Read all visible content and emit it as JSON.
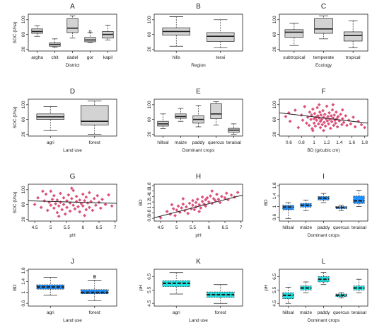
{
  "figure": {
    "colors": {
      "box_gray": "#d3d3d3",
      "box_blue": "#1e90ff",
      "box_cyan": "#22e0e0",
      "point_red": "#e0507a",
      "line": "#222222"
    }
  },
  "chart_data": [
    {
      "panel": "A",
      "type": "boxplot",
      "xlabel": "District",
      "ylabel": "SOC (t/ha)",
      "ylim": [
        15,
        115
      ],
      "yticks": [
        20,
        60,
        100
      ],
      "categories": [
        "argha",
        "chit",
        "dadel",
        "gor",
        "kapil"
      ],
      "box_color": "#d3d3d3",
      "boxes": [
        {
          "min": 55,
          "q1": 63,
          "median": 68,
          "q3": 75,
          "max": 83
        },
        {
          "min": 25,
          "q1": 28,
          "median": 33,
          "q3": 37,
          "max": 48
        },
        {
          "min": 50,
          "q1": 65,
          "median": 77,
          "q3": 103,
          "max": 110
        },
        {
          "min": 38,
          "q1": 40,
          "median": 45,
          "q3": 52,
          "max": 65
        },
        {
          "min": 45,
          "q1": 50,
          "median": 60,
          "q3": 68,
          "max": 85
        }
      ],
      "outliers": [
        {
          "cat": 3,
          "y": 68
        }
      ]
    },
    {
      "panel": "B",
      "type": "boxplot",
      "xlabel": "Region",
      "ylabel": "",
      "ylim": [
        15,
        115
      ],
      "yticks": [
        20,
        60,
        100
      ],
      "categories": [
        "hills",
        "terai"
      ],
      "box_color": "#d3d3d3",
      "boxes": [
        {
          "min": 28,
          "q1": 58,
          "median": 68,
          "q3": 78,
          "max": 108
        },
        {
          "min": 24,
          "q1": 41,
          "median": 55,
          "q3": 65,
          "max": 100
        }
      ],
      "outliers": []
    },
    {
      "panel": "C",
      "type": "boxplot",
      "xlabel": "Ecology",
      "ylabel": "",
      "ylim": [
        15,
        115
      ],
      "yticks": [
        20,
        60,
        100
      ],
      "categories": [
        "subtropical",
        "temperate",
        "tropical"
      ],
      "box_color": "#d3d3d3",
      "boxes": [
        {
          "min": 30,
          "q1": 52,
          "median": 66,
          "q3": 73,
          "max": 90
        },
        {
          "min": 48,
          "q1": 63,
          "median": 75,
          "q3": 103,
          "max": 110
        },
        {
          "min": 24,
          "q1": 42,
          "median": 57,
          "q3": 67,
          "max": 97
        }
      ],
      "outliers": []
    },
    {
      "panel": "D",
      "type": "boxplot",
      "xlabel": "Land use",
      "ylabel": "SOC (t/ha)",
      "ylim": [
        15,
        115
      ],
      "yticks": [
        20,
        60,
        100
      ],
      "categories": [
        "agri",
        "forest"
      ],
      "box_color": "#d3d3d3",
      "boxes": [
        {
          "min": 30,
          "q1": 60,
          "median": 67,
          "q3": 75,
          "max": 95
        },
        {
          "min": 20,
          "q1": 45,
          "median": 55,
          "q3": 98,
          "max": 110
        }
      ],
      "outliers": []
    },
    {
      "panel": "E",
      "type": "boxplot",
      "xlabel": "Dominant crops",
      "ylabel": "",
      "ylim": [
        15,
        115
      ],
      "yticks": [
        20,
        60,
        100
      ],
      "categories": [
        "hillsal",
        "maize",
        "paddy",
        "quercus",
        "teraisal"
      ],
      "box_color": "#d3d3d3",
      "boxes": [
        {
          "min": 35,
          "q1": 42,
          "median": 48,
          "q3": 55,
          "max": 75
        },
        {
          "min": 55,
          "q1": 63,
          "median": 68,
          "q3": 75,
          "max": 90
        },
        {
          "min": 40,
          "q1": 50,
          "median": 60,
          "q3": 70,
          "max": 98
        },
        {
          "min": 45,
          "q1": 62,
          "median": 75,
          "q3": 103,
          "max": 108
        },
        {
          "min": 20,
          "q1": 25,
          "median": 31,
          "q3": 36,
          "max": 48
        }
      ],
      "outliers": []
    },
    {
      "panel": "F",
      "type": "scatter",
      "xlabel": "BD (g/cubic cm)",
      "ylabel": "",
      "xlim": [
        0.45,
        1.85
      ],
      "ylim": [
        15,
        115
      ],
      "xticks": [
        0.6,
        0.8,
        1.0,
        1.2,
        1.4,
        1.6,
        1.8
      ],
      "yticks": [
        20,
        60,
        100
      ],
      "trend": {
        "x1": 0.45,
        "y1": 78,
        "x2": 1.85,
        "y2": 50
      },
      "points": [
        [
          0.55,
          68
        ],
        [
          0.62,
          55
        ],
        [
          0.7,
          85
        ],
        [
          0.75,
          38
        ],
        [
          0.8,
          72
        ],
        [
          0.82,
          58
        ],
        [
          0.85,
          95
        ],
        [
          0.88,
          50
        ],
        [
          0.9,
          66
        ],
        [
          0.92,
          44
        ],
        [
          0.93,
          80
        ],
        [
          0.95,
          60
        ],
        [
          0.96,
          72
        ],
        [
          0.97,
          35
        ],
        [
          0.98,
          88
        ],
        [
          1.0,
          62
        ],
        [
          1.0,
          50
        ],
        [
          1.01,
          76
        ],
        [
          1.02,
          42
        ],
        [
          1.03,
          66
        ],
        [
          1.04,
          58
        ],
        [
          1.05,
          92
        ],
        [
          1.06,
          70
        ],
        [
          1.07,
          48
        ],
        [
          1.08,
          64
        ],
        [
          1.09,
          80
        ],
        [
          1.1,
          55
        ],
        [
          1.1,
          38
        ],
        [
          1.11,
          72
        ],
        [
          1.12,
          60
        ],
        [
          1.13,
          46
        ],
        [
          1.14,
          84
        ],
        [
          1.15,
          66
        ],
        [
          1.16,
          52
        ],
        [
          1.17,
          74
        ],
        [
          1.18,
          42
        ],
        [
          1.19,
          62
        ],
        [
          1.2,
          96
        ],
        [
          1.21,
          56
        ],
        [
          1.22,
          68
        ],
        [
          1.23,
          48
        ],
        [
          1.24,
          78
        ],
        [
          1.25,
          60
        ],
        [
          1.26,
          36
        ],
        [
          1.27,
          70
        ],
        [
          1.28,
          54
        ],
        [
          1.29,
          86
        ],
        [
          1.3,
          64
        ],
        [
          1.31,
          44
        ],
        [
          1.32,
          72
        ],
        [
          1.33,
          58
        ],
        [
          1.34,
          50
        ],
        [
          1.35,
          80
        ],
        [
          1.36,
          62
        ],
        [
          1.37,
          40
        ],
        [
          1.38,
          68
        ],
        [
          1.4,
          56
        ],
        [
          1.42,
          74
        ],
        [
          1.44,
          46
        ],
        [
          1.45,
          62
        ],
        [
          1.47,
          52
        ],
        [
          1.5,
          70
        ],
        [
          1.52,
          44
        ],
        [
          1.55,
          58
        ],
        [
          1.58,
          48
        ],
        [
          1.62,
          66
        ],
        [
          1.65,
          40
        ],
        [
          1.7,
          55
        ],
        [
          1.75,
          46
        ],
        [
          1.8,
          38
        ],
        [
          1.08,
          100
        ],
        [
          1.15,
          30
        ],
        [
          0.98,
          30
        ],
        [
          1.3,
          100
        ],
        [
          1.45,
          86
        ],
        [
          0.6,
          78
        ]
      ]
    },
    {
      "panel": "G",
      "type": "scatter",
      "xlabel": "pH",
      "ylabel": "SOC (t/ha)",
      "xlim": [
        4.3,
        7.05
      ],
      "ylim": [
        15,
        115
      ],
      "xticks": [
        4.5,
        5.0,
        5.5,
        6.0,
        6.5,
        7.0
      ],
      "yticks": [
        20,
        60,
        100
      ],
      "trend": {
        "x1": 4.3,
        "y1": 70,
        "x2": 7.05,
        "y2": 63
      },
      "points": [
        [
          4.5,
          60
        ],
        [
          4.6,
          78
        ],
        [
          4.7,
          52
        ],
        [
          4.8,
          70
        ],
        [
          4.85,
          88
        ],
        [
          4.9,
          44
        ],
        [
          4.95,
          66
        ],
        [
          5.0,
          58
        ],
        [
          5.0,
          96
        ],
        [
          5.05,
          74
        ],
        [
          5.1,
          50
        ],
        [
          5.1,
          84
        ],
        [
          5.15,
          62
        ],
        [
          5.2,
          38
        ],
        [
          5.2,
          72
        ],
        [
          5.25,
          56
        ],
        [
          5.3,
          90
        ],
        [
          5.3,
          66
        ],
        [
          5.35,
          46
        ],
        [
          5.4,
          78
        ],
        [
          5.4,
          60
        ],
        [
          5.45,
          34
        ],
        [
          5.5,
          70
        ],
        [
          5.5,
          52
        ],
        [
          5.55,
          86
        ],
        [
          5.6,
          64
        ],
        [
          5.6,
          42
        ],
        [
          5.65,
          76
        ],
        [
          5.7,
          58
        ],
        [
          5.7,
          98
        ],
        [
          5.75,
          48
        ],
        [
          5.8,
          68
        ],
        [
          5.8,
          82
        ],
        [
          5.85,
          54
        ],
        [
          5.9,
          72
        ],
        [
          5.9,
          40
        ],
        [
          5.95,
          62
        ],
        [
          6.0,
          88
        ],
        [
          6.0,
          56
        ],
        [
          6.05,
          70
        ],
        [
          6.1,
          46
        ],
        [
          6.1,
          80
        ],
        [
          6.15,
          64
        ],
        [
          6.2,
          52
        ],
        [
          6.2,
          92
        ],
        [
          6.25,
          68
        ],
        [
          6.3,
          44
        ],
        [
          6.35,
          76
        ],
        [
          6.4,
          58
        ],
        [
          6.45,
          84
        ],
        [
          6.5,
          66
        ],
        [
          6.55,
          50
        ],
        [
          6.6,
          74
        ],
        [
          6.7,
          60
        ],
        [
          6.8,
          86
        ],
        [
          6.9,
          56
        ],
        [
          5.25,
          28
        ],
        [
          5.65,
          104
        ],
        [
          6.05,
          30
        ],
        [
          4.75,
          96
        ]
      ]
    },
    {
      "panel": "H",
      "type": "scatter",
      "xlabel": "pH",
      "ylabel": "BD",
      "xlim": [
        4.3,
        7.05
      ],
      "ylim": [
        0.5,
        1.85
      ],
      "xticks": [
        4.5,
        5.0,
        5.5,
        6.0,
        6.5,
        7.0
      ],
      "yticks": [
        0.6,
        0.8,
        1.0,
        1.2,
        1.4,
        1.6,
        1.8
      ],
      "trend": {
        "x1": 4.3,
        "y1": 0.62,
        "x2": 7.05,
        "y2": 1.45
      },
      "points": [
        [
          4.5,
          0.62
        ],
        [
          4.7,
          0.85
        ],
        [
          4.8,
          0.75
        ],
        [
          4.9,
          0.95
        ],
        [
          4.95,
          0.7
        ],
        [
          5.0,
          0.9
        ],
        [
          5.05,
          1.05
        ],
        [
          5.1,
          0.82
        ],
        [
          5.15,
          0.98
        ],
        [
          5.2,
          1.12
        ],
        [
          5.25,
          0.88
        ],
        [
          5.3,
          1.02
        ],
        [
          5.35,
          0.78
        ],
        [
          5.4,
          1.15
        ],
        [
          5.45,
          0.95
        ],
        [
          5.5,
          1.08
        ],
        [
          5.5,
          1.25
        ],
        [
          5.55,
          0.92
        ],
        [
          5.6,
          1.18
        ],
        [
          5.6,
          1.02
        ],
        [
          5.65,
          1.3
        ],
        [
          5.7,
          1.1
        ],
        [
          5.75,
          0.98
        ],
        [
          5.8,
          1.22
        ],
        [
          5.8,
          1.38
        ],
        [
          5.85,
          1.12
        ],
        [
          5.9,
          1.28
        ],
        [
          5.9,
          1.05
        ],
        [
          5.95,
          1.35
        ],
        [
          6.0,
          1.2
        ],
        [
          6.05,
          1.42
        ],
        [
          6.1,
          1.15
        ],
        [
          6.15,
          1.32
        ],
        [
          6.2,
          1.25
        ],
        [
          6.25,
          1.48
        ],
        [
          6.3,
          1.3
        ],
        [
          6.35,
          1.18
        ],
        [
          6.4,
          1.4
        ],
        [
          6.5,
          1.35
        ],
        [
          6.55,
          1.52
        ],
        [
          6.6,
          1.28
        ],
        [
          6.7,
          1.45
        ],
        [
          6.8,
          1.38
        ],
        [
          6.9,
          1.55
        ],
        [
          5.2,
          1.32
        ],
        [
          5.7,
          0.85
        ],
        [
          6.1,
          1.6
        ],
        [
          4.85,
          1.1
        ]
      ]
    },
    {
      "panel": "I",
      "type": "boxplot",
      "xlabel": "Dominant crops",
      "ylabel": "BD",
      "ylim": [
        0.45,
        1.85
      ],
      "yticks": [
        0.6,
        1.0,
        1.4,
        1.8
      ],
      "categories": [
        "hillsal",
        "maize",
        "paddy",
        "quercus",
        "teraisal"
      ],
      "box_color": "#1e90ff",
      "boxes": [
        {
          "min": 0.55,
          "q1": 0.88,
          "median": 0.98,
          "q3": 1.05,
          "max": 1.15
        },
        {
          "min": 0.85,
          "q1": 0.98,
          "median": 1.05,
          "q3": 1.12,
          "max": 1.25
        },
        {
          "min": 1.15,
          "q1": 1.25,
          "median": 1.32,
          "q3": 1.38,
          "max": 1.5
        },
        {
          "min": 0.85,
          "q1": 0.92,
          "median": 0.97,
          "q3": 1.0,
          "max": 1.05
        },
        {
          "min": 1.0,
          "q1": 1.12,
          "median": 1.22,
          "q3": 1.4,
          "max": 1.62
        }
      ],
      "outliers": []
    },
    {
      "panel": "J",
      "type": "boxplot",
      "xlabel": "Land use",
      "ylabel": "BD",
      "ylim": [
        0.5,
        1.85
      ],
      "yticks": [
        0.6,
        1.0,
        1.4,
        1.8
      ],
      "categories": [
        "agri",
        "forest"
      ],
      "box_color": "#1e90ff",
      "boxes": [
        {
          "min": 0.9,
          "q1": 1.12,
          "median": 1.2,
          "q3": 1.28,
          "max": 1.55
        },
        {
          "min": 0.7,
          "q1": 0.95,
          "median": 1.0,
          "q3": 1.1,
          "max": 1.45
        }
      ],
      "outliers": [
        {
          "cat": 1,
          "y": 1.6
        },
        {
          "cat": 1,
          "y": 1.55
        }
      ]
    },
    {
      "panel": "K",
      "type": "boxplot",
      "xlabel": "Land use",
      "ylabel": "pH",
      "ylim": [
        4.3,
        7.05
      ],
      "yticks": [
        4.5,
        5.5,
        6.5
      ],
      "categories": [
        "agri",
        "forest"
      ],
      "box_color": "#22e0e0",
      "boxes": [
        {
          "min": 5.2,
          "q1": 5.75,
          "median": 6.0,
          "q3": 6.2,
          "max": 6.8
        },
        {
          "min": 4.5,
          "q1": 4.95,
          "median": 5.15,
          "q3": 5.35,
          "max": 5.9
        }
      ],
      "outliers": []
    },
    {
      "panel": "L",
      "type": "boxplot",
      "xlabel": "Dominant crops",
      "ylabel": "pH",
      "ylim": [
        4.3,
        7.05
      ],
      "yticks": [
        4.5,
        5.5,
        6.5
      ],
      "categories": [
        "hillsal",
        "maize",
        "paddy",
        "quercus",
        "teraisal"
      ],
      "box_color": "#22e0e0",
      "boxes": [
        {
          "min": 4.5,
          "q1": 4.85,
          "median": 5.1,
          "q3": 5.3,
          "max": 5.7
        },
        {
          "min": 5.3,
          "q1": 5.5,
          "median": 5.65,
          "q3": 5.8,
          "max": 6.1
        },
        {
          "min": 5.9,
          "q1": 6.1,
          "median": 6.3,
          "q3": 6.5,
          "max": 6.8
        },
        {
          "min": 4.9,
          "q1": 5.0,
          "median": 5.1,
          "q3": 5.2,
          "max": 5.3
        },
        {
          "min": 5.3,
          "q1": 5.5,
          "median": 5.65,
          "q3": 5.8,
          "max": 6.3
        }
      ],
      "outliers": []
    }
  ]
}
